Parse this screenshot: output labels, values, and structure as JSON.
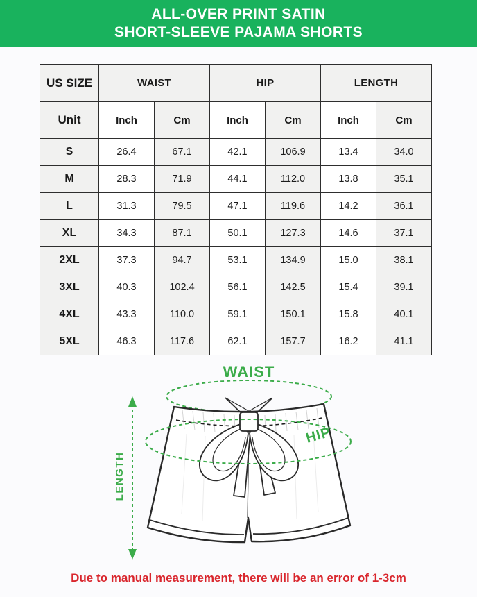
{
  "header": {
    "title_line1": "ALL-OVER PRINT SATIN",
    "title_line2": "SHORT-SLEEVE PAJAMA SHORTS"
  },
  "size_table": {
    "col_groups": [
      "US SIZE",
      "WAIST",
      "HIP",
      "LENGTH"
    ],
    "unit_row": [
      "Unit",
      "Inch",
      "Cm",
      "Inch",
      "Cm",
      "Inch",
      "Cm"
    ],
    "rows": [
      {
        "size": "S",
        "values": [
          "26.4",
          "67.1",
          "42.1",
          "106.9",
          "13.4",
          "34.0"
        ]
      },
      {
        "size": "M",
        "values": [
          "28.3",
          "71.9",
          "44.1",
          "112.0",
          "13.8",
          "35.1"
        ]
      },
      {
        "size": "L",
        "values": [
          "31.3",
          "79.5",
          "47.1",
          "119.6",
          "14.2",
          "36.1"
        ]
      },
      {
        "size": "XL",
        "values": [
          "34.3",
          "87.1",
          "50.1",
          "127.3",
          "14.6",
          "37.1"
        ]
      },
      {
        "size": "2XL",
        "values": [
          "37.3",
          "94.7",
          "53.1",
          "134.9",
          "15.0",
          "38.1"
        ]
      },
      {
        "size": "3XL",
        "values": [
          "40.3",
          "102.4",
          "56.1",
          "142.5",
          "15.4",
          "39.1"
        ]
      },
      {
        "size": "4XL",
        "values": [
          "43.3",
          "110.0",
          "59.1",
          "150.1",
          "15.8",
          "40.1"
        ]
      },
      {
        "size": "5XL",
        "values": [
          "46.3",
          "117.6",
          "62.1",
          "157.7",
          "16.2",
          "41.1"
        ]
      }
    ]
  },
  "diagram": {
    "waist_label": "WAIST",
    "hip_label": "HIP",
    "length_label": "LENGTH"
  },
  "footer": {
    "note": "Due to manual measurement, there will be an error of 1-3cm"
  },
  "colors": {
    "header_green": "#19b25d",
    "label_green": "#3cac4a",
    "note_red": "#d9262d"
  }
}
